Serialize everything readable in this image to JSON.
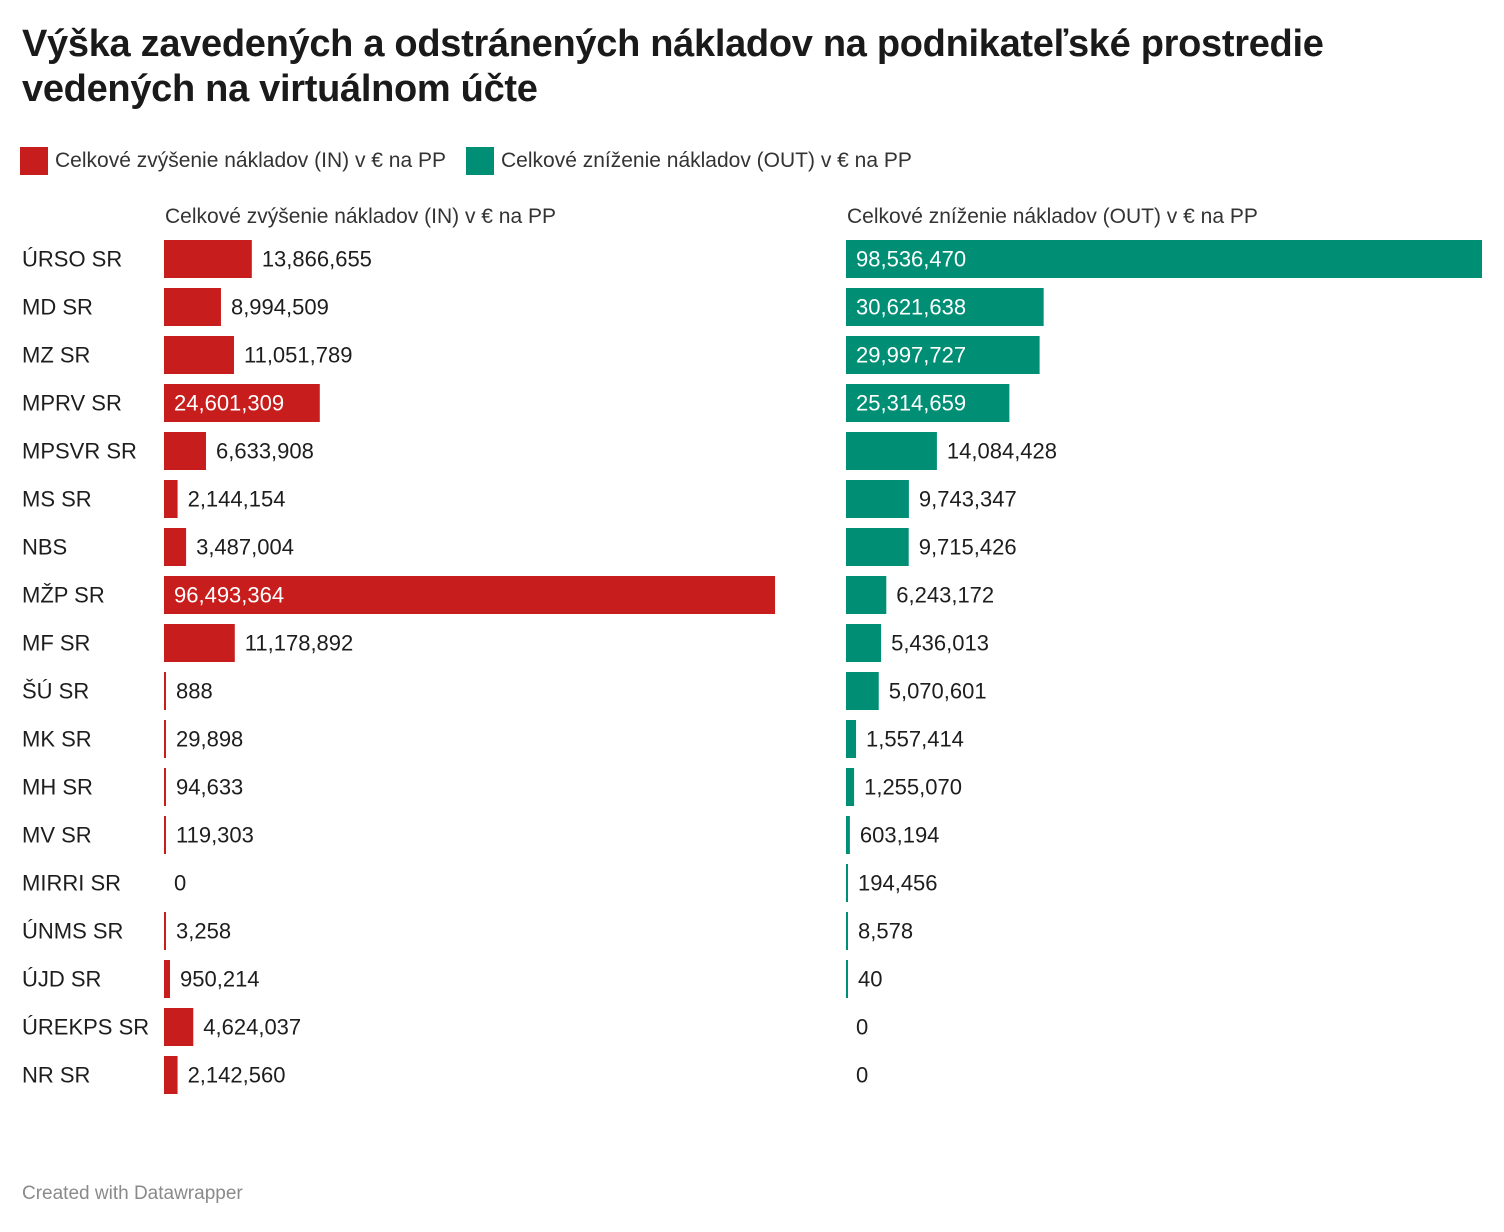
{
  "title": "Výška zavedených a odstránených nákladov na podnikateľské prostredie vedených na virtuálnom účte",
  "legend": [
    {
      "label": "Celkové zvýšenie nákladov (IN) v € na PP",
      "color": "#c71e1d"
    },
    {
      "label": "Celkové zníženie nákladov (OUT) v € na PP",
      "color": "#008f75"
    }
  ],
  "footer": "Created with Datawrapper",
  "chart_data": {
    "type": "bar",
    "orientation": "horizontal",
    "categories": [
      "ÚRSO SR",
      "MD SR",
      "MZ SR",
      "MPRV SR",
      "MPSVR SR",
      "MS SR",
      "NBS",
      "MŽP SR",
      "MF SR",
      "ŠÚ SR",
      "MK SR",
      "MH SR",
      "MV SR",
      "MIRRI SR",
      "ÚNMS SR",
      "ÚJD SR",
      "ÚREKPS SR",
      "NR SR"
    ],
    "series": [
      {
        "name": "Celkové zvýšenie nákladov (IN) v € na PP",
        "color": "#c71e1d",
        "values": [
          13866655,
          8994509,
          11051789,
          24601309,
          6633908,
          2144154,
          3487004,
          96493364,
          11178892,
          888,
          29898,
          94633,
          119303,
          0,
          3258,
          950214,
          4624037,
          2142560
        ],
        "labels": [
          "13,866,655",
          "8,994,509",
          "11,051,789",
          "24,601,309",
          "6,633,908",
          "2,144,154",
          "3,487,004",
          "96,493,364",
          "11,178,892",
          "888",
          "29,898",
          "94,633",
          "119,303",
          "0",
          "3,258",
          "950,214",
          "4,624,037",
          "2,142,560"
        ]
      },
      {
        "name": "Celkové zníženie nákladov (OUT) v € na PP",
        "color": "#008f75",
        "values": [
          98536470,
          30621638,
          29997727,
          25314659,
          14084428,
          9743347,
          9715426,
          6243172,
          5436013,
          5070601,
          1557414,
          1255070,
          603194,
          194456,
          8578,
          40,
          0,
          0
        ],
        "labels": [
          "98,536,470",
          "30,621,638",
          "29,997,727",
          "25,314,659",
          "14,084,428",
          "9,743,347",
          "9,715,426",
          "6,243,172",
          "5,436,013",
          "5,070,601",
          "1,557,414",
          "1,255,070",
          "603,194",
          "194,456",
          "8,578",
          "40",
          "0",
          "0"
        ]
      }
    ]
  }
}
